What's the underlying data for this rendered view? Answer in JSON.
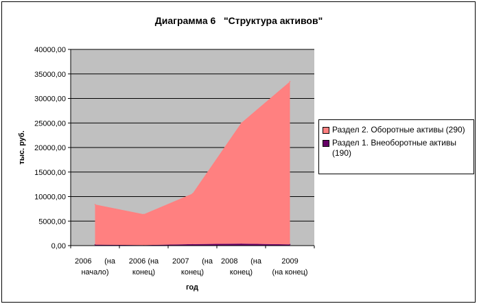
{
  "chart_data": {
    "type": "area",
    "stacked": true,
    "title": "Диаграмма 6   \"Структура активов\"",
    "xlabel": "год",
    "ylabel": "тыс. руб.",
    "ylim": [
      0,
      40000
    ],
    "y_ticks": [
      "0,00",
      "5000,00",
      "10000,00",
      "15000,00",
      "20000,00",
      "25000,00",
      "30000,00",
      "35000,00",
      "40000,00"
    ],
    "categories": [
      [
        "2006",
        "(на",
        "начало)"
      ],
      [
        "2006 (на",
        "конец)"
      ],
      [
        "2007",
        "(на",
        "конец)"
      ],
      [
        "2008",
        "(на",
        "конец)"
      ],
      [
        "2009",
        "(на конец)"
      ]
    ],
    "series": [
      {
        "name": "Раздел 1. Внеоборотные активы (190)",
        "color": "#660066",
        "values": [
          200,
          100,
          300,
          400,
          250
        ]
      },
      {
        "name": "Раздел 2. Оборотные активы (290)",
        "color": "#FF8080",
        "values": [
          8200,
          6300,
          10300,
          24600,
          33200
        ]
      }
    ],
    "legend_order": [
      1,
      0
    ],
    "legend_position": "right",
    "plot_background": "#C0C0C0",
    "grid": true
  }
}
